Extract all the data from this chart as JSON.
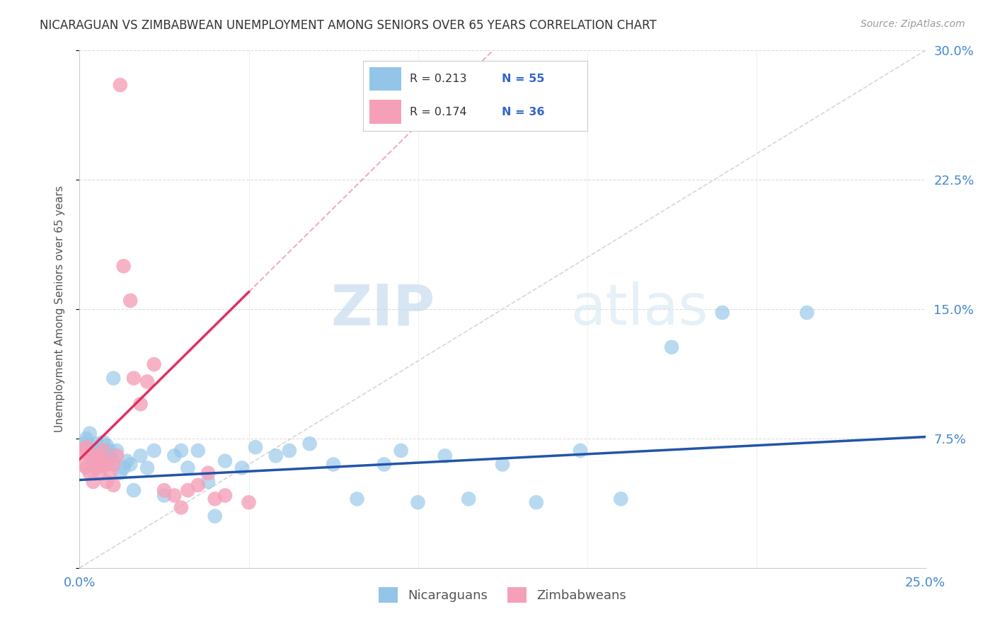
{
  "title": "NICARAGUAN VS ZIMBABWEAN UNEMPLOYMENT AMONG SENIORS OVER 65 YEARS CORRELATION CHART",
  "source": "Source: ZipAtlas.com",
  "ylabel": "Unemployment Among Seniors over 65 years",
  "xlim": [
    0.0,
    0.25
  ],
  "ylim": [
    0.0,
    0.3
  ],
  "yticks": [
    0.0,
    0.075,
    0.15,
    0.225,
    0.3
  ],
  "ytick_labels": [
    "",
    "7.5%",
    "15.0%",
    "22.5%",
    "30.0%"
  ],
  "xtick_labels_show": [
    "0.0%",
    "25.0%"
  ],
  "xtick_show_positions": [
    0.0,
    0.25
  ],
  "nicaraguan_R": 0.213,
  "nicaraguan_N": 55,
  "zimbabwean_R": 0.174,
  "zimbabwean_N": 36,
  "watermark_zip": "ZIP",
  "watermark_atlas": "atlas",
  "blue_color": "#92C5E8",
  "blue_line_color": "#2255AA",
  "pink_color": "#F5A0B8",
  "pink_line_color": "#E03060",
  "diag_line_color": "#CCCCCC",
  "legend_r_color": "#333333",
  "legend_n_color": "#3366CC",
  "grid_color": "#DDDDDD",
  "title_color": "#333333",
  "axis_label_color": "#555555",
  "tick_color": "#4488CC",
  "nicaraguan_x": [
    0.001,
    0.002,
    0.002,
    0.003,
    0.003,
    0.004,
    0.004,
    0.005,
    0.005,
    0.006,
    0.006,
    0.007,
    0.007,
    0.008,
    0.008,
    0.009,
    0.009,
    0.01,
    0.01,
    0.011,
    0.012,
    0.013,
    0.014,
    0.015,
    0.016,
    0.018,
    0.02,
    0.022,
    0.025,
    0.028,
    0.03,
    0.032,
    0.035,
    0.038,
    0.04,
    0.043,
    0.048,
    0.052,
    0.058,
    0.062,
    0.068,
    0.075,
    0.082,
    0.09,
    0.095,
    0.1,
    0.108,
    0.115,
    0.125,
    0.135,
    0.148,
    0.16,
    0.175,
    0.19,
    0.215
  ],
  "nicaraguan_y": [
    0.072,
    0.068,
    0.075,
    0.065,
    0.078,
    0.062,
    0.07,
    0.058,
    0.072,
    0.065,
    0.068,
    0.06,
    0.073,
    0.066,
    0.071,
    0.063,
    0.068,
    0.11,
    0.062,
    0.068,
    0.055,
    0.058,
    0.062,
    0.06,
    0.045,
    0.065,
    0.058,
    0.068,
    0.042,
    0.065,
    0.068,
    0.058,
    0.068,
    0.05,
    0.03,
    0.062,
    0.058,
    0.07,
    0.065,
    0.068,
    0.072,
    0.06,
    0.04,
    0.06,
    0.068,
    0.038,
    0.065,
    0.04,
    0.06,
    0.038,
    0.068,
    0.04,
    0.128,
    0.148,
    0.148
  ],
  "zimbabwean_x": [
    0.001,
    0.001,
    0.002,
    0.002,
    0.003,
    0.003,
    0.004,
    0.004,
    0.005,
    0.005,
    0.006,
    0.006,
    0.007,
    0.007,
    0.008,
    0.008,
    0.009,
    0.01,
    0.01,
    0.011,
    0.012,
    0.013,
    0.015,
    0.016,
    0.018,
    0.02,
    0.022,
    0.025,
    0.028,
    0.03,
    0.032,
    0.035,
    0.038,
    0.04,
    0.043,
    0.05
  ],
  "zimbabwean_y": [
    0.068,
    0.06,
    0.07,
    0.058,
    0.065,
    0.055,
    0.062,
    0.05,
    0.058,
    0.065,
    0.06,
    0.055,
    0.062,
    0.068,
    0.05,
    0.06,
    0.055,
    0.048,
    0.06,
    0.065,
    0.28,
    0.175,
    0.155,
    0.11,
    0.095,
    0.108,
    0.118,
    0.045,
    0.042,
    0.035,
    0.045,
    0.048,
    0.055,
    0.04,
    0.042,
    0.038
  ]
}
